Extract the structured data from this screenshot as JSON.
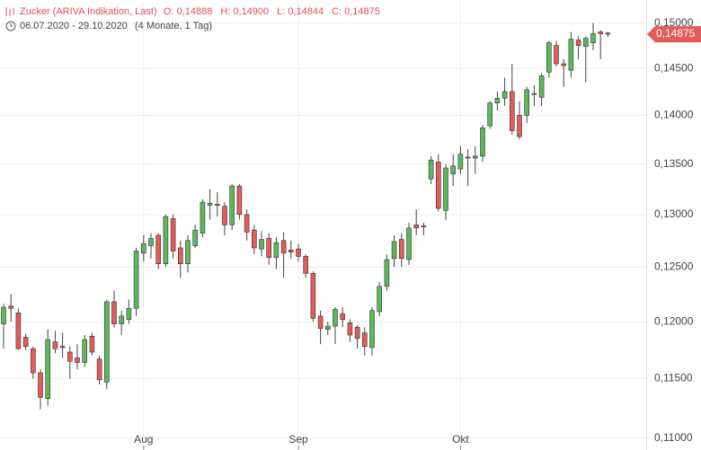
{
  "header": {
    "title": "Zucker (ARIVA Indikation, Last)",
    "ohlc": [
      {
        "key": "O:",
        "value": "0,14888"
      },
      {
        "key": "H:",
        "value": "0,14900"
      },
      {
        "key": "L:",
        "value": "0,14844"
      },
      {
        "key": "C:",
        "value": "0,14875"
      }
    ],
    "range": "06.07.2020 - 29.10.2020",
    "duration": "(4 Monate, 1 Tag)"
  },
  "chart_data": {
    "type": "candlestick",
    "log_scale": true,
    "grid": true,
    "up_color": "#5cb85c",
    "down_color": "#e35b5b",
    "ylim": [
      0.1091,
      0.1526
    ],
    "yticks": [
      {
        "value": 0.11,
        "label": "0,11000"
      },
      {
        "value": 0.115,
        "label": "0,11500"
      },
      {
        "value": 0.12,
        "label": "0,12000"
      },
      {
        "value": 0.125,
        "label": "0,12500"
      },
      {
        "value": 0.13,
        "label": "0,13000"
      },
      {
        "value": 0.135,
        "label": "0,13500"
      },
      {
        "value": 0.14,
        "label": "0,14000"
      },
      {
        "value": 0.145,
        "label": "0,14500"
      },
      {
        "value": 0.15,
        "label": "0,15000"
      }
    ],
    "last": {
      "value": 0.14875,
      "label": "0,14875"
    },
    "categories": [
      null,
      null,
      null,
      null,
      null,
      null,
      null,
      null,
      null,
      null,
      null,
      null,
      null,
      null,
      null,
      null,
      null,
      null,
      null,
      "Aug",
      null,
      null,
      null,
      null,
      null,
      null,
      null,
      null,
      null,
      null,
      null,
      null,
      null,
      null,
      null,
      null,
      null,
      null,
      null,
      null,
      "Sep",
      null,
      null,
      null,
      null,
      null,
      null,
      null,
      null,
      null,
      null,
      null,
      null,
      null,
      null,
      null,
      null,
      null,
      null,
      null,
      null,
      null,
      "Okt",
      null,
      null,
      null,
      null,
      null,
      null,
      null,
      null,
      null,
      null,
      null,
      null,
      null,
      null,
      null,
      null,
      null,
      null,
      null,
      null
    ],
    "open": [
      0.1198,
      0.1214,
      0.1208,
      0.1186,
      0.1176,
      0.1155,
      0.1133,
      0.1182,
      0.1178,
      0.1173,
      0.1168,
      0.1164,
      0.1187,
      0.1167,
      0.1147,
      0.1218,
      0.1198,
      0.1202,
      0.1212,
      0.1263,
      0.127,
      0.128,
      0.1253,
      0.1296,
      0.1268,
      0.1253,
      0.127,
      0.1282,
      0.1309,
      0.131,
      0.1308,
      0.129,
      0.1328,
      0.13,
      0.1285,
      0.1267,
      0.1277,
      0.1259,
      0.1275,
      0.1266,
      0.1267,
      0.126,
      0.1244,
      0.1205,
      0.1193,
      0.1196,
      0.1207,
      0.1199,
      0.1195,
      0.119,
      0.1177,
      0.1209,
      0.1232,
      0.1258,
      0.1276,
      0.1257,
      0.129,
      0.1289,
      0.1335,
      0.1352,
      0.1304,
      0.134,
      0.1345,
      0.1357,
      0.1356,
      0.1358,
      0.1389,
      0.1413,
      0.1418,
      0.1425,
      0.14,
      0.14,
      0.1423,
      0.1419,
      0.1446,
      0.1475,
      0.1455,
      0.1448,
      0.1481,
      0.1474,
      0.1478,
      0.149,
      0.14888
    ],
    "high": [
      0.1216,
      0.1225,
      0.1212,
      0.1189,
      0.1178,
      0.1158,
      0.1193,
      0.1192,
      0.119,
      0.1178,
      0.118,
      0.1188,
      0.119,
      0.117,
      0.122,
      0.1228,
      0.121,
      0.122,
      0.1268,
      0.128,
      0.1282,
      0.1282,
      0.13,
      0.13,
      0.1275,
      0.128,
      0.129,
      0.1315,
      0.1325,
      0.1322,
      0.1312,
      0.133,
      0.133,
      0.1305,
      0.129,
      0.1284,
      0.1282,
      0.1278,
      0.1283,
      0.1275,
      0.1272,
      0.1262,
      0.1246,
      0.121,
      0.12,
      0.1213,
      0.1213,
      0.1202,
      0.1197,
      0.1195,
      0.1213,
      0.1236,
      0.1262,
      0.128,
      0.1282,
      0.1292,
      0.1305,
      0.1292,
      0.1358,
      0.136,
      0.135,
      0.136,
      0.1368,
      0.1365,
      0.1368,
      0.139,
      0.1415,
      0.1425,
      0.144,
      0.1455,
      0.1415,
      0.143,
      0.1432,
      0.1445,
      0.148,
      0.148,
      0.146,
      0.149,
      0.1485,
      0.1485,
      0.15,
      0.1492,
      0.149
    ],
    "low": [
      0.1176,
      0.12,
      0.1175,
      0.1175,
      0.115,
      0.1124,
      0.1127,
      0.1172,
      0.1168,
      0.115,
      0.1158,
      0.116,
      0.117,
      0.1145,
      0.1141,
      0.1195,
      0.1188,
      0.1198,
      0.1205,
      0.1255,
      0.1258,
      0.1248,
      0.125,
      0.1258,
      0.124,
      0.1245,
      0.1268,
      0.1278,
      0.1295,
      0.1298,
      0.128,
      0.1285,
      0.1295,
      0.1275,
      0.1262,
      0.126,
      0.1252,
      0.1248,
      0.124,
      0.1258,
      0.1255,
      0.124,
      0.12,
      0.118,
      0.1188,
      0.118,
      0.1195,
      0.1182,
      0.1176,
      0.117,
      0.117,
      0.1205,
      0.1228,
      0.125,
      0.125,
      0.1252,
      0.128,
      0.128,
      0.133,
      0.1303,
      0.1295,
      0.1328,
      0.134,
      0.1328,
      0.134,
      0.1352,
      0.1386,
      0.1405,
      0.141,
      0.138,
      0.1375,
      0.1392,
      0.141,
      0.141,
      0.144,
      0.1452,
      0.143,
      0.144,
      0.146,
      0.1435,
      0.147,
      0.146,
      0.14844
    ],
    "close": [
      0.1213,
      0.1212,
      0.1176,
      0.1178,
      0.1155,
      0.1134,
      0.1184,
      0.1176,
      0.1177,
      0.1165,
      0.1164,
      0.1184,
      0.1173,
      0.1149,
      0.1218,
      0.1198,
      0.1205,
      0.1212,
      0.1265,
      0.1272,
      0.1277,
      0.1253,
      0.1298,
      0.1265,
      0.1253,
      0.1275,
      0.1285,
      0.1312,
      0.1311,
      0.1309,
      0.129,
      0.1328,
      0.13,
      0.1283,
      0.1268,
      0.1276,
      0.1259,
      0.1273,
      0.1263,
      0.1264,
      0.126,
      0.1244,
      0.1203,
      0.1194,
      0.1196,
      0.1211,
      0.1202,
      0.1188,
      0.1185,
      0.1178,
      0.121,
      0.1232,
      0.1257,
      0.1274,
      0.1258,
      0.1287,
      0.1287,
      0.1288,
      0.1354,
      0.1306,
      0.1346,
      0.1348,
      0.136,
      0.1356,
      0.1358,
      0.1387,
      0.1413,
      0.1418,
      0.1425,
      0.1384,
      0.1378,
      0.1427,
      0.1422,
      0.1442,
      0.1478,
      0.1455,
      0.1453,
      0.1482,
      0.1475,
      0.1483,
      0.1488,
      0.1488,
      0.14875
    ]
  }
}
